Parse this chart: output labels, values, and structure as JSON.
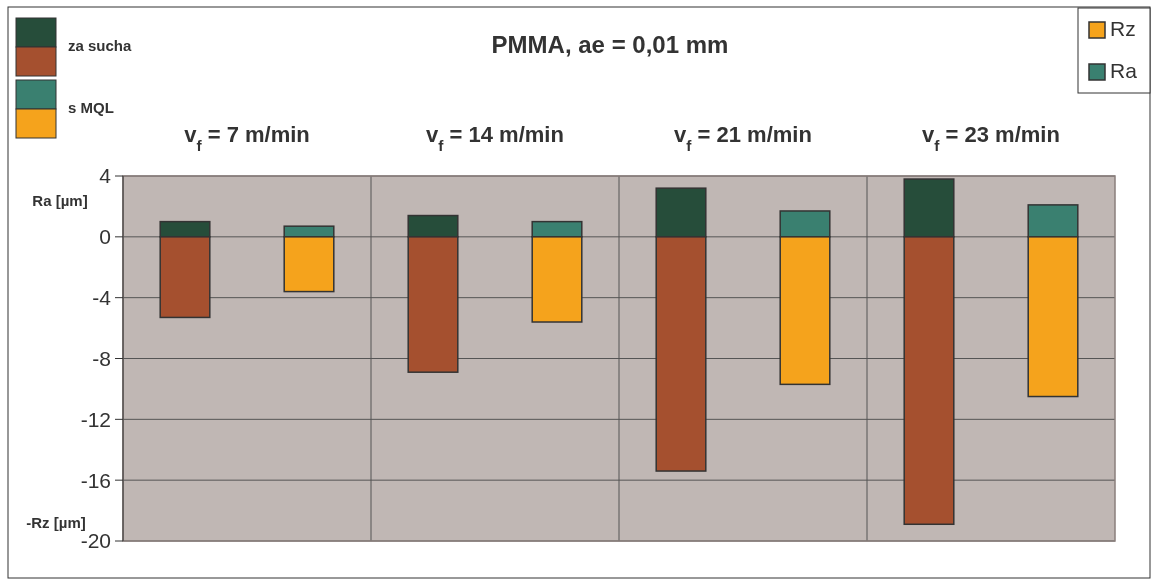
{
  "chart_data": {
    "type": "bar",
    "title": "PMMA, ae = 0,01 mm",
    "ylabel": "Ra [µm]",
    "annotations": [
      "za sucha",
      "s MQL",
      "v$_{f}$ = 7 m/min",
      "v$_{f}$ = 14 m/min",
      "v$_{f}$ = 21 m/min",
      "v$_{f}$ = 23 m/min",
      "-Rz [µm]"
    ],
    "categories": [
      null,
      null,
      null,
      null,
      null,
      null,
      null,
      null
    ],
    "stacked": true,
    "series": [
      {
        "color": "#264d3a",
        "values": [
          1.0,
          null,
          1.4,
          null,
          3.2,
          null,
          3.8,
          null
        ]
      },
      {
        "color": "#a5502f",
        "values": [
          -5.3,
          null,
          -8.9,
          null,
          -15.4,
          null,
          -18.9,
          null
        ]
      },
      {
        "name": "Ra",
        "color": "#3a8070",
        "values": [
          null,
          0.7,
          null,
          1.0,
          null,
          1.7,
          null,
          2.1
        ]
      },
      {
        "name": "Rz",
        "color": "#f5a31c",
        "values": [
          null,
          -3.6,
          null,
          -5.6,
          null,
          -9.7,
          null,
          -10.5
        ]
      }
    ],
    "ylim": [
      -20,
      4
    ],
    "yticks": [
      -20,
      -16,
      -12,
      -8,
      -4,
      0,
      4
    ],
    "grid": true,
    "legend": "top right"
  }
}
